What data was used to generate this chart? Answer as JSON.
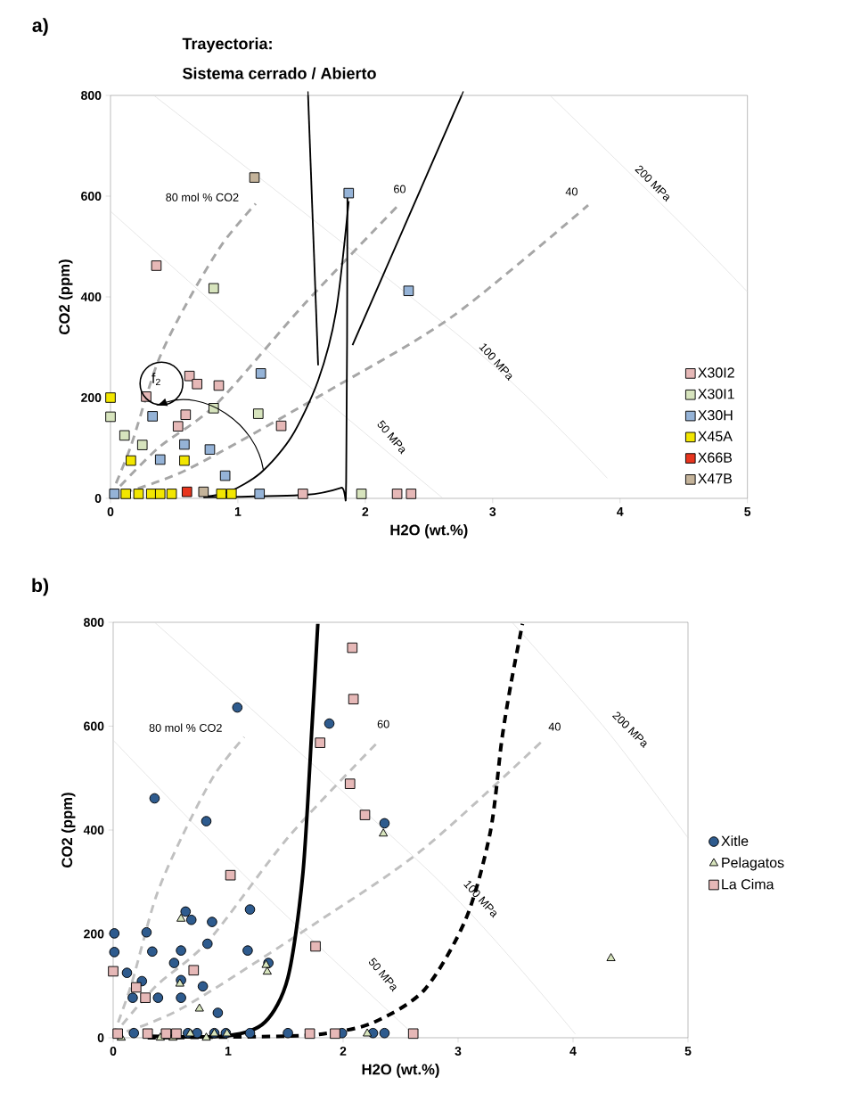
{
  "chart_data": [
    {
      "type": "scatter",
      "title": "a)",
      "xlabel": "H2O (wt.%)",
      "ylabel": "CO2 (ppm)",
      "xlim": [
        0,
        5
      ],
      "ylim": [
        0,
        800
      ],
      "xticks": [
        0,
        1,
        2,
        3,
        4,
        5
      ],
      "yticks": [
        0,
        200,
        400,
        600,
        800
      ],
      "grid": false,
      "legend": "bottom right",
      "annotations": [
        "Trayectoria:",
        "Sistema cerrado / Abierto",
        "80 mol % CO2",
        "60",
        "40",
        "50 MPa",
        "100 MPa",
        "200 MPa",
        "f$_{2}$"
      ],
      "series": [
        {
          "type": "line",
          "color": "#d9d9d9",
          "line_style": "solid",
          "x": [
            0,
            1.2,
            2.61
          ],
          "values": [
            570,
            300,
            0
          ]
        },
        {
          "type": "line",
          "color": "#d9d9d9",
          "line_style": "solid",
          "x": [
            0.34,
            2.82,
            3.9
          ],
          "values": [
            800,
            305,
            40
          ]
        },
        {
          "type": "line",
          "color": "#d9d9d9",
          "line_style": "solid",
          "x": [
            3.45,
            4.45,
            5
          ],
          "values": [
            800,
            553,
            410
          ]
        },
        {
          "type": "line",
          "color": "#a6a6a6",
          "line_style": "dashed",
          "x": [
            0,
            0.16,
            0.37,
            0.6,
            0.88,
            1.14
          ],
          "values": [
            4,
            104,
            270,
            388,
            506,
            585
          ]
        },
        {
          "type": "line",
          "color": "#a6a6a6",
          "line_style": "dashed",
          "x": [
            0,
            0.37,
            0.83,
            1.53,
            2.26
          ],
          "values": [
            4,
            99,
            187,
            388,
            582
          ]
        },
        {
          "type": "line",
          "color": "#a6a6a6",
          "line_style": "dashed",
          "x": [
            0,
            0.6,
            1.77,
            2.7,
            3.75
          ],
          "values": [
            4,
            57,
            222,
            364,
            582
          ]
        },
        {
          "type": "line",
          "color": "#000000",
          "line_style": "solid",
          "x": [
            0.73,
            0.93,
            1.18,
            1.42,
            1.63,
            1.77,
            1.87
          ],
          "values": [
            3,
            13,
            51,
            122,
            234,
            370,
            590
          ]
        },
        {
          "type": "line",
          "color": "#000000",
          "line_style": "solid",
          "x": [
            0.73,
            1.53,
            1.81,
            1.85,
            1.86
          ],
          "values": [
            2,
            7,
            21,
            34,
            600
          ]
        },
        {
          "type": "line",
          "color": "#000000",
          "line_style": "solid",
          "x": [
            1.551,
            1.63
          ],
          "values": [
            800,
            264
          ]
        },
        {
          "type": "line",
          "color": "#000000",
          "line_style": "solid",
          "x": [
            2.756,
            1.9
          ],
          "values": [
            800,
            304
          ]
        },
        {
          "name": "X30I2",
          "color": "#e6b8b7",
          "marker": "square",
          "x": [
            0.36,
            0.62,
            0.68,
            0.85,
            0.28,
            0.59,
            0.53,
            1.34,
            1.51,
            2.25,
            2.36
          ],
          "values": [
            462,
            243,
            227,
            224,
            202,
            166,
            143,
            144,
            9,
            9,
            9
          ]
        },
        {
          "name": "X30I1",
          "color": "#d7e4bd",
          "marker": "square",
          "x": [
            0.81,
            0,
            0.11,
            0.25,
            0.81,
            1.16,
            1.97
          ],
          "values": [
            417,
            162,
            125,
            106,
            179,
            168,
            9
          ]
        },
        {
          "name": "X30H",
          "color": "#95b3d7",
          "marker": "square",
          "x": [
            1.87,
            2.34,
            1.18,
            0.33,
            0.58,
            0.78,
            0.39,
            0.9,
            0.03,
            1.17
          ],
          "values": [
            606,
            412,
            248,
            163,
            107,
            97,
            77,
            45,
            9,
            9
          ]
        },
        {
          "name": "X45A",
          "color": "#f2e600",
          "marker": "square",
          "x": [
            0,
            0.16,
            0.58,
            0.12,
            0.22,
            0.32,
            0.39,
            0.48,
            0.87,
            0.95
          ],
          "values": [
            200,
            75,
            75,
            9,
            9,
            9,
            9,
            9,
            9,
            9
          ]
        },
        {
          "name": "X66B",
          "color": "#e8351e",
          "marker": "square",
          "x": [
            0.6
          ],
          "values": [
            13
          ]
        },
        {
          "name": "X47B",
          "color": "#c4b39a",
          "marker": "square",
          "x": [
            1.13,
            0.73
          ],
          "values": [
            637,
            13
          ]
        }
      ]
    },
    {
      "type": "scatter",
      "title": "b)",
      "xlabel": "H2O (wt.%)",
      "ylabel": "CO2 (ppm)",
      "xlim": [
        0,
        5
      ],
      "ylim": [
        0,
        800
      ],
      "xticks": [
        0,
        1,
        2,
        3,
        4,
        5
      ],
      "yticks": [
        0,
        200,
        400,
        600,
        800
      ],
      "grid": false,
      "legend": "right",
      "annotations": [
        "80 mol % CO2",
        "60",
        "40",
        "50 MPa",
        "100 MPa",
        "200 MPa"
      ],
      "series": [
        {
          "type": "line",
          "color": "#d9d9d9",
          "line_style": "solid",
          "x": [
            0,
            1.2,
            2.61
          ],
          "values": [
            573,
            300,
            7
          ]
        },
        {
          "type": "line",
          "color": "#d9d9d9",
          "line_style": "solid",
          "x": [
            0.36,
            2.82,
            4.02
          ],
          "values": [
            800,
            305,
            7
          ]
        },
        {
          "type": "line",
          "color": "#d9d9d9",
          "line_style": "solid",
          "x": [
            3.47,
            4.3,
            5
          ],
          "values": [
            800,
            590,
            385
          ]
        },
        {
          "type": "line",
          "color": "#c0c0c0",
          "line_style": "dashed",
          "x": [
            0,
            0.16,
            0.37,
            0.6,
            0.88,
            1.14
          ],
          "values": [
            4,
            104,
            270,
            388,
            506,
            579
          ]
        },
        {
          "type": "line",
          "color": "#c0c0c0",
          "line_style": "dashed",
          "x": [
            0,
            0.37,
            0.83,
            1.53,
            2.31
          ],
          "values": [
            4,
            99,
            187,
            388,
            571
          ]
        },
        {
          "type": "line",
          "color": "#c0c0c0",
          "line_style": "dashed",
          "x": [
            0,
            0.6,
            1.77,
            2.7,
            3.74
          ],
          "values": [
            4,
            57,
            222,
            364,
            573
          ]
        },
        {
          "type": "line",
          "color": "#000000",
          "line_style": "solid",
          "x": [
            0.3,
            1.0,
            1.32,
            1.52,
            1.65,
            1.73,
            1.78
          ],
          "values": [
            3,
            4,
            30,
            116,
            316,
            602,
            797
          ]
        },
        {
          "type": "line",
          "color": "#000000",
          "line_style": "dashed",
          "x": [
            0.3,
            1.5,
            1.9,
            2.27,
            2.71,
            3.07,
            3.28,
            3.38,
            3.46,
            3.56
          ],
          "values": [
            0,
            3,
            10,
            30,
            93,
            230,
            396,
            573,
            682,
            797
          ]
        },
        {
          "name": "Xitle",
          "color": "#2e5b8e",
          "marker": "circle",
          "x": [
            1.08,
            1.88,
            0.36,
            0.81,
            2.36,
            1.19,
            0.63,
            0.68,
            0.86,
            0.01,
            0.29,
            0.82,
            0.01,
            0.34,
            0.59,
            1.17,
            0.53,
            1.35,
            0.12,
            0.25,
            0.59,
            0.78,
            0.17,
            0.39,
            0.59,
            0.91,
            1.52,
            2.36,
            2.26,
            1.99,
            0.18,
            0.65,
            0.73,
            0.88,
            0.98,
            1.19
          ],
          "values": [
            636,
            605,
            461,
            417,
            413,
            247,
            243,
            227,
            223,
            201,
            203,
            181,
            165,
            166,
            168,
            168,
            144,
            144,
            125,
            109,
            111,
            99,
            77,
            77,
            77,
            48,
            9,
            9,
            9,
            9,
            9,
            9,
            9,
            9,
            9,
            9
          ]
        },
        {
          "name": "Pelagatos",
          "color": "#d7e4bd",
          "marker": "triangle",
          "x": [
            2.35,
            4.33,
            0.59,
            1.34,
            1.33,
            0.58,
            0.75,
            0.07,
            0.41,
            0.52,
            0.81,
            0.67,
            0.88,
            0.99,
            2.21
          ],
          "values": [
            393,
            153,
            229,
            127,
            140,
            104,
            56,
            0,
            0,
            0,
            0,
            8,
            8,
            8,
            8
          ]
        },
        {
          "name": "La Cima",
          "color": "#e6b8b7",
          "marker": "square",
          "x": [
            2.08,
            2.09,
            1.8,
            2.06,
            2.19,
            1.02,
            1.76,
            0.7,
            0,
            0.2,
            0.28,
            0.04,
            0.3,
            0.46,
            0.55,
            1.71,
            1.93,
            2.61
          ],
          "values": [
            751,
            652,
            568,
            489,
            429,
            313,
            176,
            130,
            128,
            97,
            77,
            8,
            8,
            8,
            8,
            8,
            8,
            8
          ]
        }
      ]
    }
  ]
}
